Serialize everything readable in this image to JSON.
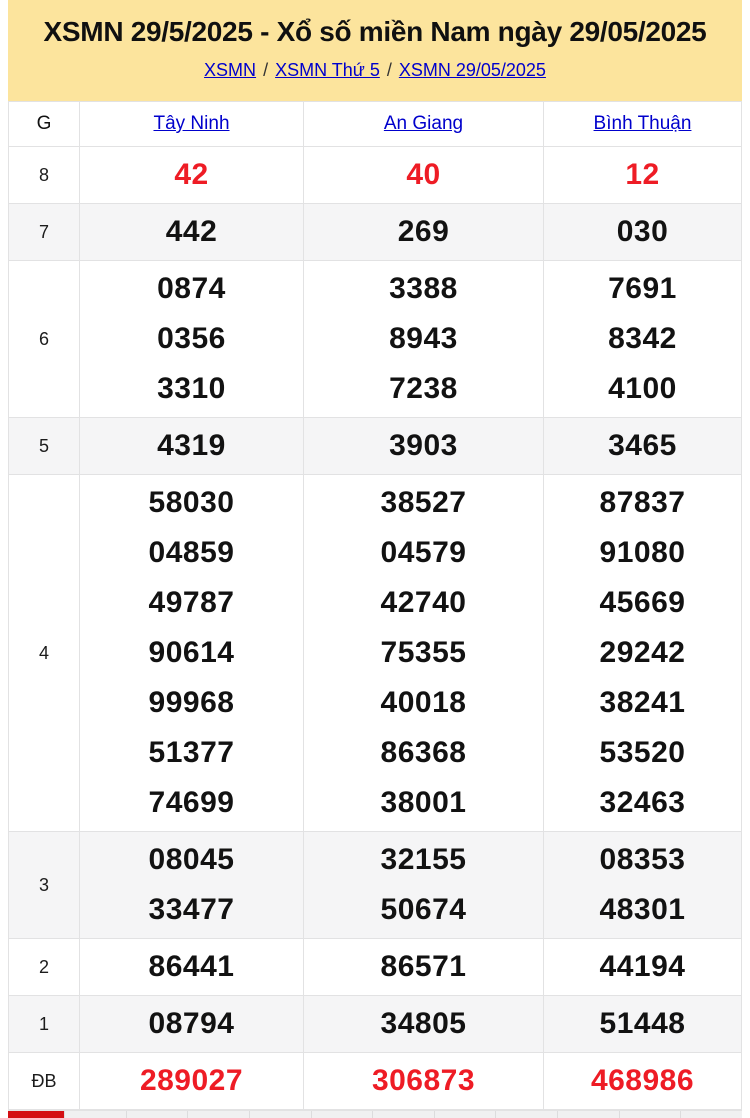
{
  "header": {
    "title": "XSMN 29/5/2025 - Xổ số miền Nam ngày 29/05/2025",
    "separator": "/",
    "breadcrumb": [
      {
        "label": "XSMN"
      },
      {
        "label": "XSMN Thứ 5"
      },
      {
        "label": "XSMN 29/05/2025"
      }
    ]
  },
  "table": {
    "corner_label": "G",
    "provinces": [
      "Tây Ninh",
      "An Giang",
      "Bình Thuận"
    ],
    "rows": [
      {
        "label": "8",
        "highlight": true,
        "values": [
          [
            "42"
          ],
          [
            "40"
          ],
          [
            "12"
          ]
        ]
      },
      {
        "label": "7",
        "highlight": false,
        "values": [
          [
            "442"
          ],
          [
            "269"
          ],
          [
            "030"
          ]
        ]
      },
      {
        "label": "6",
        "highlight": false,
        "values": [
          [
            "0874",
            "0356",
            "3310"
          ],
          [
            "3388",
            "8943",
            "7238"
          ],
          [
            "7691",
            "8342",
            "4100"
          ]
        ]
      },
      {
        "label": "5",
        "highlight": false,
        "values": [
          [
            "4319"
          ],
          [
            "3903"
          ],
          [
            "3465"
          ]
        ]
      },
      {
        "label": "4",
        "highlight": false,
        "values": [
          [
            "58030",
            "04859",
            "49787",
            "90614",
            "99968",
            "51377",
            "74699"
          ],
          [
            "38527",
            "04579",
            "42740",
            "75355",
            "40018",
            "86368",
            "38001"
          ],
          [
            "87837",
            "91080",
            "45669",
            "29242",
            "38241",
            "53520",
            "32463"
          ]
        ]
      },
      {
        "label": "3",
        "highlight": false,
        "values": [
          [
            "08045",
            "33477"
          ],
          [
            "32155",
            "50674"
          ],
          [
            "08353",
            "48301"
          ]
        ]
      },
      {
        "label": "2",
        "highlight": false,
        "values": [
          [
            "86441"
          ],
          [
            "86571"
          ],
          [
            "44194"
          ]
        ]
      },
      {
        "label": "1",
        "highlight": false,
        "values": [
          [
            "08794"
          ],
          [
            "34805"
          ],
          [
            "51448"
          ]
        ]
      },
      {
        "label": "ĐB",
        "highlight": true,
        "values": [
          [
            "289027"
          ],
          [
            "306873"
          ],
          [
            "468986"
          ]
        ]
      }
    ]
  },
  "next_table_partial": {
    "cell_count": 11
  },
  "colors": {
    "hero_bg": "#fce49d",
    "link_blue": "#0000cc",
    "prize_red": "#ee1c25",
    "strip_red": "#d40e13",
    "alt_row_bg": "#f5f5f6",
    "border": "#e2e2e3"
  }
}
